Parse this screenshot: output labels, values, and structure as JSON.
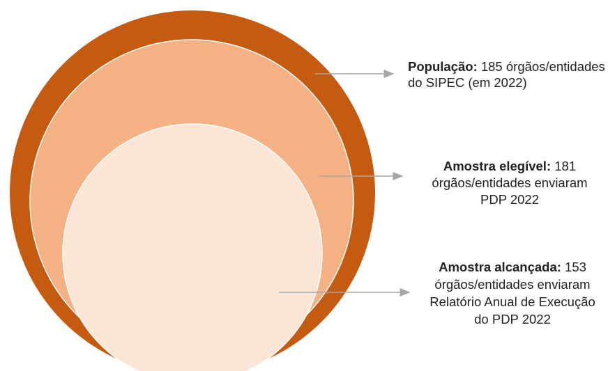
{
  "items": [
    {
      "label": "População:",
      "lines": [
        "185 órgãos/entidades",
        "do SIPEC (em 2022)"
      ]
    },
    {
      "label": "Amostra elegível:",
      "lines": [
        "181",
        "órgãos/entidades enviaram",
        "PDP 2022"
      ]
    },
    {
      "label": "Amostra alcançada:",
      "lines": [
        "153",
        "órgãos/entidades enviaram",
        "Relatório Anual de Execução",
        "do PDP 2022"
      ]
    }
  ]
}
